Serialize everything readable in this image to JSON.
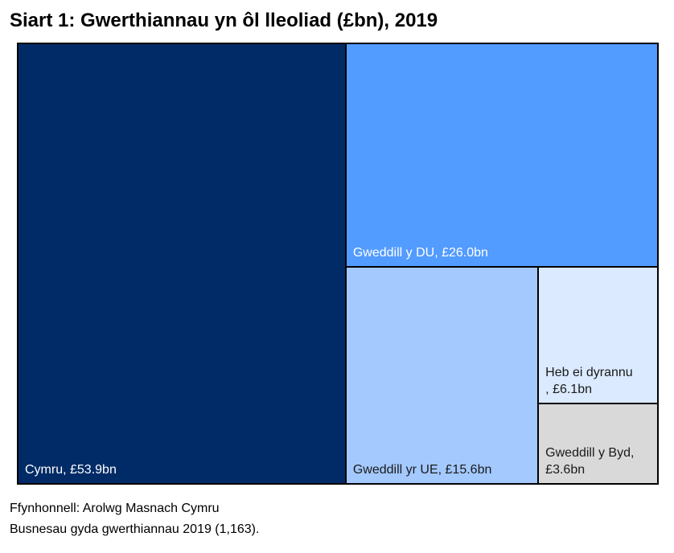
{
  "chart_data": {
    "type": "treemap",
    "title": "Siart 1: Gwerthiannau yn ôl lleoliad (£bn), 2019",
    "values": [
      53.9,
      26.0,
      15.6,
      6.1,
      3.6
    ],
    "value_labels": [
      "Cymru, £53.9bn",
      "Gweddill y DU, £26.0bn",
      "Gweddill yr UE, £15.6bn",
      "Heb ei dyrannu\n, £6.1bn",
      "Gweddill y Byd,\n£3.6bn"
    ],
    "colors": [
      "#002b66",
      "#529bff",
      "#a3c9ff",
      "#dbeaff",
      "#d9d9d9"
    ],
    "label_colors": [
      "#ffffff",
      "#ffffff",
      "#1a1a1a",
      "#1a1a1a",
      "#1a1a1a"
    ],
    "notes": [
      "Ffynhonnell: Arolwg Masnach Cymru",
      "Busnesau gyda gwerthiannau 2019 (1,163)."
    ]
  }
}
